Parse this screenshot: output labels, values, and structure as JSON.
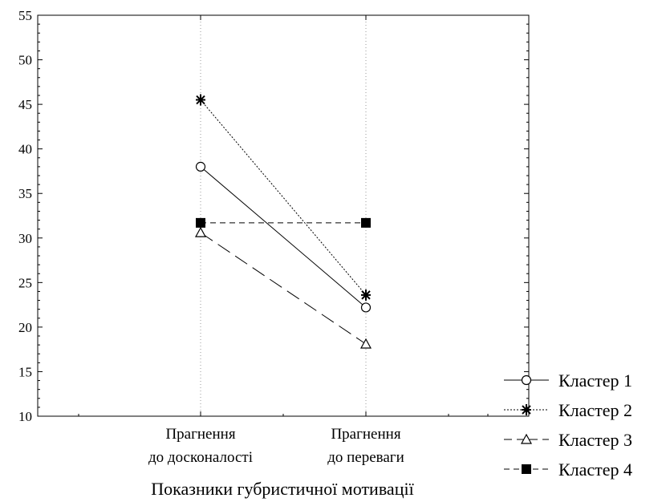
{
  "chart_data": {
    "type": "line",
    "title": "",
    "xlabel": "Показники губристичної мотивації",
    "ylabel": "",
    "categories": [
      [
        "Прагнення",
        "до досконалості"
      ],
      [
        "Прагнення",
        "до переваги"
      ]
    ],
    "ylim": [
      10,
      55
    ],
    "yticks": [
      "10",
      "15",
      "20",
      "25",
      "30",
      "35",
      "40",
      "45",
      "50",
      "55"
    ],
    "grid": "dotted vertical at categories",
    "legend_position": "bottom-right",
    "series": [
      {
        "name": "Кластер 1",
        "values": [
          38.0,
          22.2
        ],
        "marker": "circle-open",
        "line": "solid"
      },
      {
        "name": "Кластер 2",
        "values": [
          45.5,
          23.6
        ],
        "marker": "asterisk",
        "line": "dotted"
      },
      {
        "name": "Кластер 3",
        "values": [
          30.6,
          18.1
        ],
        "marker": "triangle-open",
        "line": "long-dash"
      },
      {
        "name": "Кластер 4",
        "values": [
          31.7,
          31.7
        ],
        "marker": "square-filled",
        "line": "dashed"
      }
    ]
  }
}
